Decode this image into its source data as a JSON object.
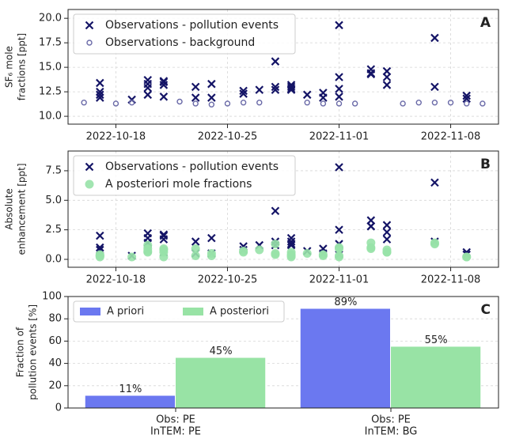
{
  "chart_data": [
    {
      "type": "scatter",
      "label": "A",
      "ylabel": [
        "SF₆ mole",
        "fractions [ppt]"
      ],
      "xlim": [
        "2022-10-15",
        "2022-11-11"
      ],
      "xticks": [
        "2022-10-18",
        "2022-10-25",
        "2022-11-01",
        "2022-11-08"
      ],
      "ylim": [
        9.2,
        20.9
      ],
      "yticks": [
        {
          "value": 10,
          "label": "10.0"
        },
        12.5,
        {
          "value": 15,
          "label": "15.0"
        },
        17.5,
        {
          "value": 20,
          "label": "20.0"
        }
      ],
      "grid": true,
      "legend": "upper left",
      "series": [
        {
          "name": "Observations - pollution events",
          "color": "#141466",
          "marker": "x",
          "x": [
            "2022-10-17",
            "2022-10-17",
            "2022-10-17",
            "2022-10-17",
            "2022-10-19",
            "2022-10-20",
            "2022-10-20",
            "2022-10-20",
            "2022-10-20",
            "2022-10-21",
            "2022-10-21",
            "2022-10-21",
            "2022-10-21",
            "2022-10-23",
            "2022-10-23",
            "2022-10-24",
            "2022-10-24",
            "2022-10-26",
            "2022-10-26",
            "2022-10-27",
            "2022-10-28",
            "2022-10-28",
            "2022-10-28",
            "2022-10-29",
            "2022-10-29",
            "2022-10-29",
            "2022-10-29",
            "2022-10-30",
            "2022-10-31",
            "2022-10-31",
            "2022-11-01",
            "2022-11-01",
            "2022-11-01",
            "2022-11-01",
            "2022-11-03",
            "2022-11-03",
            "2022-11-03",
            "2022-11-04",
            "2022-11-04",
            "2022-11-04",
            "2022-11-07",
            "2022-11-07",
            "2022-11-09",
            "2022-11-09"
          ],
          "values": [
            13.4,
            11.9,
            12.2,
            12.5,
            11.7,
            12.2,
            13.3,
            13.7,
            12.9,
            13.5,
            13.6,
            13.2,
            12.0,
            13.0,
            11.9,
            11.9,
            13.3,
            12.3,
            12.6,
            12.7,
            15.6,
            13.0,
            12.7,
            12.8,
            13.2,
            12.7,
            13.0,
            12.2,
            11.9,
            12.4,
            14.0,
            19.3,
            12.8,
            12.0,
            14.4,
            14.8,
            14.3,
            13.2,
            14.6,
            14.0,
            13.0,
            18.0,
            11.8,
            12.1
          ]
        },
        {
          "name": "Observations - background",
          "color": "#6a6aa8",
          "marker": "o",
          "x": [
            "2022-10-16",
            "2022-10-18",
            "2022-10-19",
            "2022-10-22",
            "2022-10-23",
            "2022-10-24",
            "2022-10-25",
            "2022-10-26",
            "2022-10-27",
            "2022-10-30",
            "2022-10-31",
            "2022-11-01",
            "2022-11-02",
            "2022-11-05",
            "2022-11-06",
            "2022-11-07",
            "2022-11-08",
            "2022-11-09",
            "2022-11-10"
          ],
          "values": [
            11.4,
            11.3,
            11.4,
            11.5,
            11.3,
            11.2,
            11.3,
            11.4,
            11.4,
            11.4,
            11.3,
            11.3,
            11.3,
            11.3,
            11.4,
            11.4,
            11.4,
            11.3,
            11.3
          ]
        }
      ]
    },
    {
      "type": "scatter",
      "label": "B",
      "ylabel": [
        "Absolute",
        "enhancement [ppt]"
      ],
      "xlim": [
        "2022-10-15",
        "2022-11-11"
      ],
      "xticks": [
        "2022-10-18",
        "2022-10-25",
        "2022-11-01",
        "2022-11-08"
      ],
      "ylim": [
        -0.67,
        9.17
      ],
      "yticks": [
        {
          "value": 0,
          "label": "0.0"
        },
        2.5,
        {
          "value": 5,
          "label": "5.0"
        },
        7.5
      ],
      "grid": true,
      "legend": "upper left",
      "series": [
        {
          "name": "Observations - pollution events",
          "color": "#141466",
          "marker": "x",
          "x": [
            "2022-10-17",
            "2022-10-17",
            "2022-10-17",
            "2022-10-17",
            "2022-10-19",
            "2022-10-20",
            "2022-10-20",
            "2022-10-20",
            "2022-10-20",
            "2022-10-21",
            "2022-10-21",
            "2022-10-21",
            "2022-10-21",
            "2022-10-23",
            "2022-10-23",
            "2022-10-24",
            "2022-10-24",
            "2022-10-26",
            "2022-10-26",
            "2022-10-27",
            "2022-10-28",
            "2022-10-28",
            "2022-10-28",
            "2022-10-29",
            "2022-10-29",
            "2022-10-29",
            "2022-10-29",
            "2022-10-30",
            "2022-10-31",
            "2022-10-31",
            "2022-11-01",
            "2022-11-01",
            "2022-11-01",
            "2022-11-01",
            "2022-11-03",
            "2022-11-03",
            "2022-11-03",
            "2022-11-04",
            "2022-11-04",
            "2022-11-04",
            "2022-11-07",
            "2022-11-07",
            "2022-11-09",
            "2022-11-09"
          ],
          "values": [
            2.0,
            0.5,
            0.8,
            1.0,
            0.3,
            0.8,
            1.8,
            2.2,
            1.4,
            2.0,
            2.1,
            1.7,
            0.6,
            1.5,
            0.5,
            0.5,
            1.8,
            0.8,
            1.1,
            1.2,
            4.1,
            1.5,
            1.2,
            1.3,
            1.8,
            1.2,
            1.5,
            0.7,
            0.5,
            0.9,
            2.5,
            7.8,
            1.3,
            0.4,
            2.8,
            3.3,
            2.8,
            1.7,
            2.9,
            2.3,
            1.5,
            6.5,
            0.4,
            0.6
          ]
        },
        {
          "name": "A posteriori mole fractions",
          "color": "#98e2a8",
          "marker": "dot",
          "x": [
            "2022-10-17",
            "2022-10-17",
            "2022-10-17",
            "2022-10-17",
            "2022-10-19",
            "2022-10-20",
            "2022-10-20",
            "2022-10-20",
            "2022-10-20",
            "2022-10-21",
            "2022-10-21",
            "2022-10-21",
            "2022-10-21",
            "2022-10-23",
            "2022-10-23",
            "2022-10-24",
            "2022-10-24",
            "2022-10-26",
            "2022-10-26",
            "2022-10-27",
            "2022-10-28",
            "2022-10-28",
            "2022-10-28",
            "2022-10-29",
            "2022-10-29",
            "2022-10-29",
            "2022-10-29",
            "2022-10-30",
            "2022-10-31",
            "2022-10-31",
            "2022-11-01",
            "2022-11-01",
            "2022-11-01",
            "2022-11-01",
            "2022-11-03",
            "2022-11-03",
            "2022-11-03",
            "2022-11-04",
            "2022-11-04",
            "2022-11-04",
            "2022-11-07",
            "2022-11-07",
            "2022-11-09",
            "2022-11-09"
          ],
          "values": [
            0.3,
            0.2,
            0.4,
            0.3,
            0.2,
            0.6,
            0.9,
            1.2,
            0.7,
            0.9,
            0.8,
            0.6,
            0.2,
            0.9,
            0.3,
            0.3,
            0.5,
            0.6,
            0.7,
            0.8,
            1.3,
            0.5,
            0.4,
            0.3,
            0.2,
            0.6,
            0.4,
            0.5,
            0.3,
            0.4,
            1.0,
            0.9,
            0.3,
            0.2,
            1.0,
            1.4,
            0.9,
            0.6,
            0.8,
            0.6,
            1.3,
            1.4,
            0.2,
            0.2
          ]
        }
      ]
    },
    {
      "type": "bar",
      "label": "C",
      "ylabel": [
        "Fraction of",
        "pollution events [%]"
      ],
      "categories": [
        [
          "Obs: PE",
          "InTEM: PE"
        ],
        [
          "Obs: PE",
          "InTEM: BG"
        ]
      ],
      "ylim": [
        0,
        100
      ],
      "yticks": [
        0,
        20,
        40,
        60,
        80,
        100
      ],
      "grid": true,
      "legend": "upper left",
      "series": [
        {
          "name": "A priori",
          "color": "#6b78f0",
          "values": [
            11,
            89
          ],
          "value_labels": [
            "11%",
            "89%"
          ]
        },
        {
          "name": "A posteriori",
          "color": "#98e3a5",
          "values": [
            45,
            55
          ],
          "value_labels": [
            "45%",
            "55%"
          ]
        }
      ]
    }
  ]
}
